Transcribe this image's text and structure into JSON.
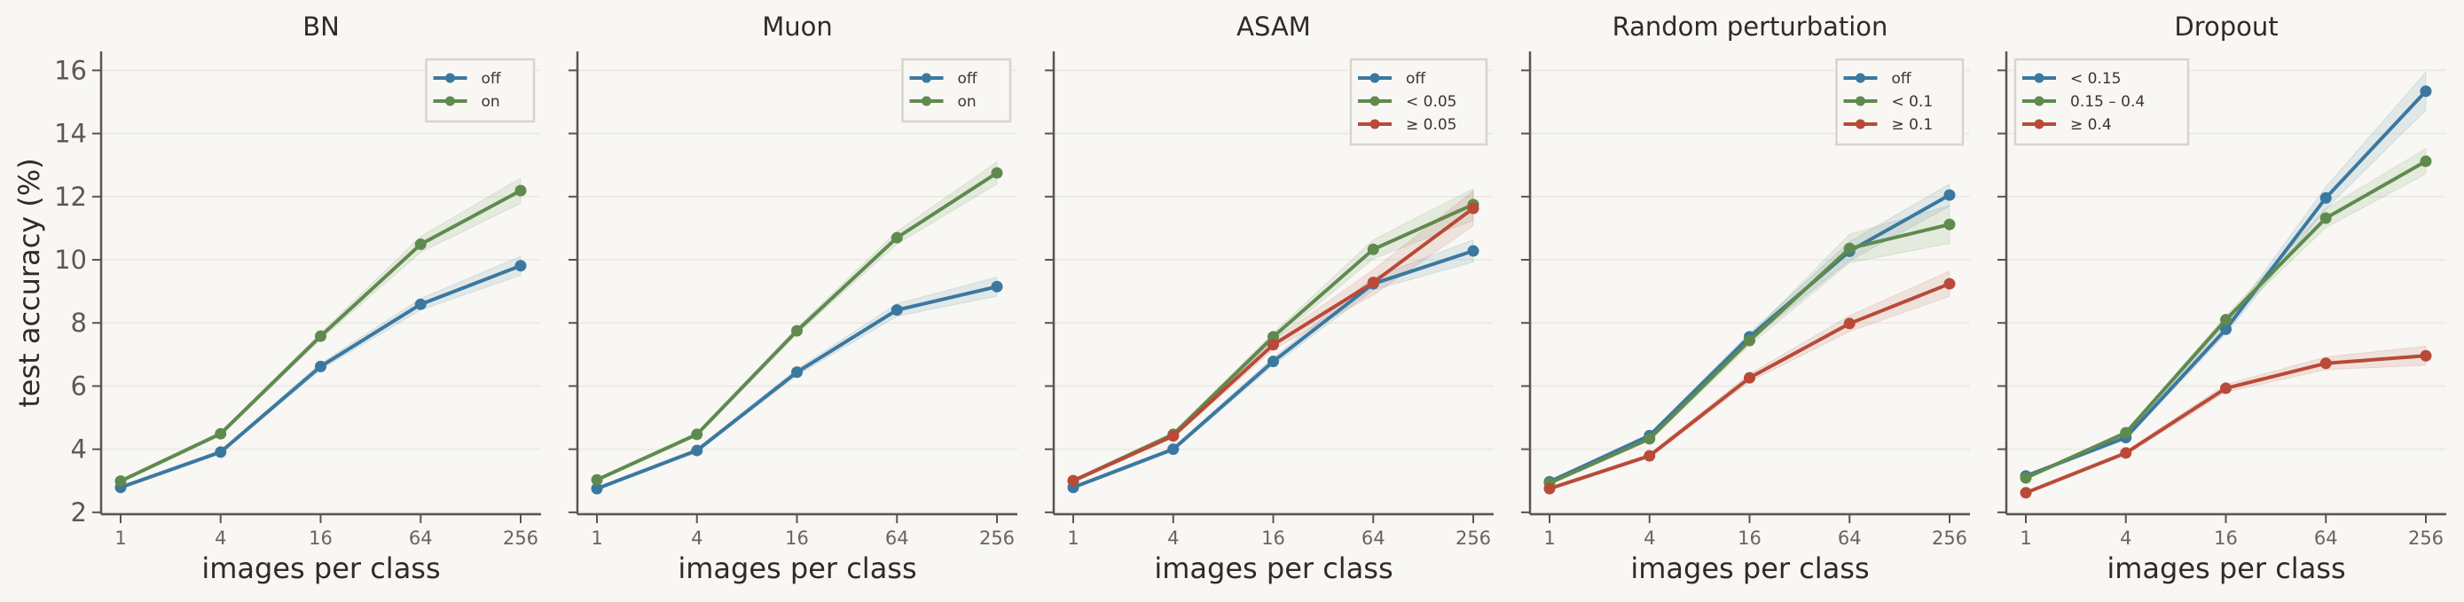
{
  "chart_data": {
    "type": "line",
    "ylabel": "test accuracy (%)",
    "xlabel": "images per class",
    "x": [
      1,
      4,
      16,
      64,
      256
    ],
    "x_tick_labels": [
      "1",
      "4",
      "16",
      "64",
      "256"
    ],
    "x_scale": "log2",
    "ylim": [
      1.94,
      16.6
    ],
    "y_ticks": [
      2,
      4,
      6,
      8,
      10,
      12,
      14,
      16
    ],
    "grid": "horizontal",
    "shared_y": true,
    "colors": {
      "blue": "#3b78a0",
      "green": "#5f8a4e",
      "red": "#b94a38"
    },
    "panels": [
      {
        "title": "BN",
        "legend": "top-right",
        "series": [
          {
            "name": "off",
            "color": "#3b78a0",
            "values": [
              2.79,
              3.91,
              6.62,
              8.59,
              9.81
            ],
            "ci": [
              0.05,
              0.06,
              0.1,
              0.18,
              0.3
            ]
          },
          {
            "name": "on",
            "color": "#5f8a4e",
            "values": [
              2.99,
              4.49,
              7.58,
              10.49,
              12.19
            ],
            "ci": [
              0.05,
              0.06,
              0.1,
              0.25,
              0.4
            ]
          }
        ]
      },
      {
        "title": "Muon",
        "legend": "top-right",
        "series": [
          {
            "name": "off",
            "color": "#3b78a0",
            "values": [
              2.75,
              3.96,
              6.44,
              8.41,
              9.15
            ],
            "ci": [
              0.05,
              0.06,
              0.1,
              0.2,
              0.3
            ]
          },
          {
            "name": "on",
            "color": "#5f8a4e",
            "values": [
              3.03,
              4.47,
              7.75,
              10.7,
              12.75
            ],
            "ci": [
              0.05,
              0.06,
              0.1,
              0.2,
              0.35
            ]
          }
        ]
      },
      {
        "title": "ASAM",
        "legend": "top-right",
        "series": [
          {
            "name": "off",
            "color": "#3b78a0",
            "values": [
              2.79,
              4.0,
              6.78,
              9.24,
              10.28
            ],
            "ci": [
              0.05,
              0.06,
              0.12,
              0.2,
              0.35
            ]
          },
          {
            "name": "< 0.05",
            "color": "#5f8a4e",
            "values": [
              3.0,
              4.47,
              7.56,
              10.33,
              11.75
            ],
            "ci": [
              0.05,
              0.06,
              0.12,
              0.3,
              0.5
            ]
          },
          {
            "name": "≥ 0.05",
            "color": "#b94a38",
            "values": [
              3.0,
              4.42,
              7.31,
              9.28,
              11.63
            ],
            "ci": [
              0.05,
              0.06,
              0.15,
              0.4,
              0.55
            ]
          }
        ]
      },
      {
        "title": "Random perturbation",
        "legend": "top-right",
        "series": [
          {
            "name": "off",
            "color": "#3b78a0",
            "values": [
              2.97,
              4.43,
              7.56,
              10.27,
              12.05
            ],
            "ci": [
              0.05,
              0.06,
              0.12,
              0.3,
              0.35
            ]
          },
          {
            "name": "< 0.1",
            "color": "#5f8a4e",
            "values": [
              2.93,
              4.33,
              7.44,
              10.36,
              11.12
            ],
            "ci": [
              0.05,
              0.06,
              0.15,
              0.45,
              0.6
            ]
          },
          {
            "name": "≥ 0.1",
            "color": "#b94a38",
            "values": [
              2.75,
              3.79,
              6.26,
              7.98,
              9.24
            ],
            "ci": [
              0.05,
              0.06,
              0.12,
              0.25,
              0.4
            ]
          }
        ]
      },
      {
        "title": "Dropout",
        "legend": "top-left",
        "series": [
          {
            "name": "< 0.15",
            "color": "#3b78a0",
            "values": [
              3.15,
              4.37,
              7.8,
              11.96,
              15.34
            ],
            "ci": [
              0.05,
              0.06,
              0.15,
              0.35,
              0.6
            ]
          },
          {
            "name": "0.15 – 0.4",
            "color": "#5f8a4e",
            "values": [
              3.09,
              4.52,
              8.1,
              11.32,
              13.12
            ],
            "ci": [
              0.05,
              0.06,
              0.12,
              0.3,
              0.4
            ]
          },
          {
            "name": "≥ 0.4",
            "color": "#b94a38",
            "values": [
              2.62,
              3.88,
              5.93,
              6.72,
              6.96
            ],
            "ci": [
              0.05,
              0.06,
              0.12,
              0.2,
              0.3
            ]
          }
        ]
      }
    ]
  }
}
